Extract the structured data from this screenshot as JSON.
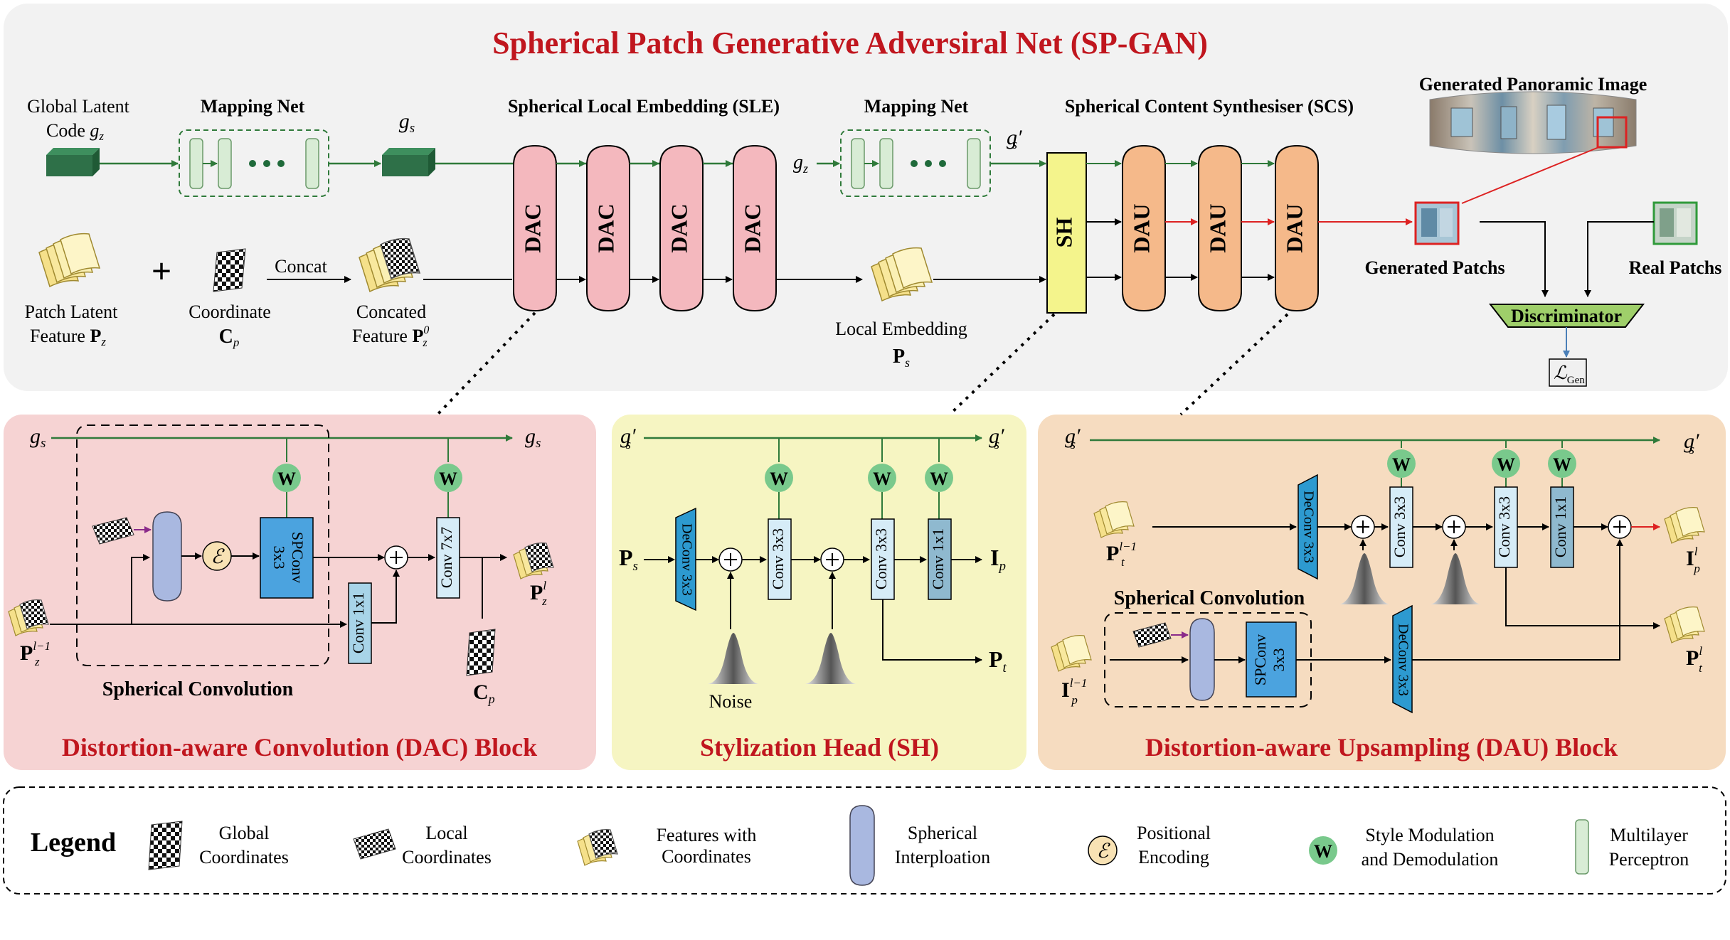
{
  "main_title": "Spherical Patch Generative Adversiral Net (SP-GAN)",
  "top": {
    "global_latent": [
      "Global Latent",
      "Code"
    ],
    "global_latent_sym": "g",
    "global_latent_sub": "z",
    "mapping_net": "Mapping Net",
    "gs": "g",
    "gs_sub": "s",
    "sle_title": "Spherical Local Embedding (SLE)",
    "mapping_net2": "Mapping Net",
    "gz2": "g",
    "gz2_sub": "z",
    "gsp": "g′",
    "gsp_sub": "s",
    "scs_title": "Spherical Content Synthesiser (SCS)",
    "pano_title": "Generated Panoramic Image",
    "patch_latent": [
      "Patch Latent",
      "Feature"
    ],
    "patch_latent_sym": "P",
    "patch_latent_sub": "z",
    "plus": "+",
    "coordinate": "Coordinate",
    "coordinate_sym": "C",
    "coordinate_sub": "p",
    "concat": "Concat",
    "concated": [
      "Concated",
      "Feature"
    ],
    "concated_sym": "P",
    "concated_sup": "0",
    "concated_sub": "z",
    "dac": "DAC",
    "local_embedding": "Local Embedding",
    "local_embedding_sym": "P",
    "local_embedding_sub": "s",
    "sh": "SH",
    "dau": "DAU",
    "generated_patches": "Generated Patchs",
    "real_patches": "Real Patchs",
    "discriminator": "Discriminator",
    "loss_sym": "ℒ",
    "loss_sub": "Gen"
  },
  "dac_block": {
    "title": "Distortion-aware Convolution (DAC) Block",
    "gs_left": "g",
    "gs_left_sub": "s",
    "gs_right": "g",
    "gs_right_sub": "s",
    "w": "W",
    "eps": "ℰ",
    "spconv": [
      "SPConv",
      "3x3"
    ],
    "conv7": "Conv 7x7",
    "conv1": "Conv 1x1",
    "in_sym": "P",
    "in_sup": "l−1",
    "in_sub": "z",
    "out_sym": "P",
    "out_sup": "l",
    "out_sub": "z",
    "coord_sym": "C",
    "coord_sub": "p",
    "spherical_conv": "Spherical Convolution"
  },
  "sh_block": {
    "title": "Stylization Head (SH)",
    "gsp_left": "g′",
    "gsp_left_sub": "s",
    "gsp_right": "g′",
    "gsp_right_sub": "s",
    "in_sym": "P",
    "in_sub": "s",
    "deconv": "DeConv 3x3",
    "conv3a": "Conv 3x3",
    "conv3b": "Conv 3x3",
    "conv1": "Conv 1x1",
    "out_i": "I",
    "out_i_sub": "p",
    "out_p": "P",
    "out_p_sub": "t",
    "noise": "Noise"
  },
  "dau_block": {
    "title": "Distortion-aware Upsampling (DAU) Block",
    "gsp_left": "g′",
    "gsp_left_sub": "s",
    "gsp_right": "g′",
    "gsp_right_sub": "s",
    "in_p_sym": "P",
    "in_p_sup": "l−1",
    "in_p_sub": "t",
    "in_i_sym": "I",
    "in_i_sup": "l−1",
    "in_i_sub": "p",
    "deconv_a": "DeConv 3x3",
    "deconv_b": "DeConv 3x3",
    "conv3a": "Conv 3x3",
    "conv3b": "Conv 3x3",
    "conv1": "Conv 1x1",
    "spconv": [
      "SPConv",
      "3x3"
    ],
    "spherical_conv": "Spherical Convolution",
    "out_i_sym": "I",
    "out_i_sup": "l",
    "out_i_sub": "p",
    "out_p_sym": "P",
    "out_p_sup": "l",
    "out_p_sub": "t"
  },
  "legend": {
    "title": "Legend",
    "global_coords": [
      "Global",
      "Coordinates"
    ],
    "local_coords": [
      "Local",
      "Coordinates"
    ],
    "features_coords": [
      "Features with",
      "Coordinates"
    ],
    "spherical_interp": [
      "Spherical",
      "Interploation"
    ],
    "positional": [
      "Positional",
      "Encoding"
    ],
    "style_mod": [
      "Style Modulation",
      "and Demodulation"
    ],
    "mlp": [
      "Multilayer",
      "Perceptron"
    ]
  },
  "colors": {
    "title_red": "#c0161e",
    "green_line": "#2f7a3a",
    "dac_pink": "#f4b8be",
    "dau_orange": "#f5b98a",
    "sh_yellow": "#f4f48c",
    "conv_blue": "#4ba3df",
    "conv_light": "#d6ecf7",
    "w_green": "#79c98c",
    "mlp_green": "#d8ecd5",
    "panel_pink": "#f6d3d3",
    "panel_yellow": "#f6f5c2",
    "panel_orange": "#f6dcc0",
    "top_gray": "#f2f2f2"
  }
}
